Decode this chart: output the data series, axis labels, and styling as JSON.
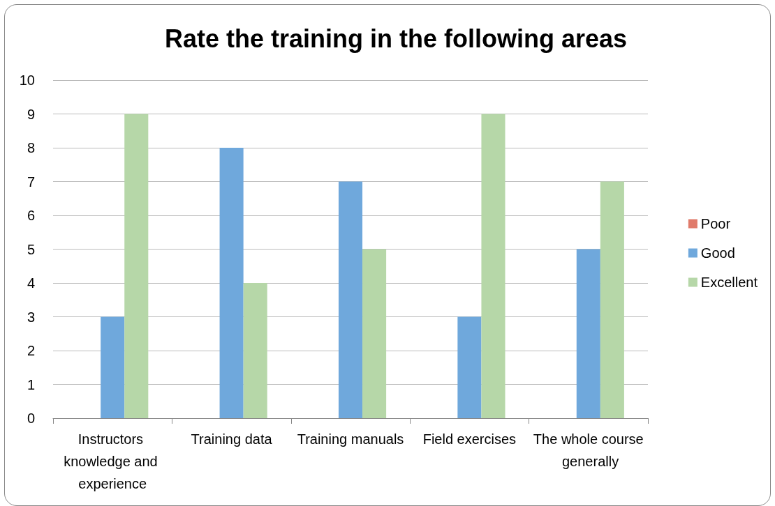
{
  "chart_data": {
    "type": "bar",
    "title": "Rate the training in the following areas",
    "categories": [
      "Instructors knowledge and experience",
      "Training data",
      "Training manuals",
      "Field exercises",
      "The whole course generally"
    ],
    "series": [
      {
        "name": "Poor",
        "color": "#e07b6b",
        "values": [
          0,
          0,
          0,
          0,
          0
        ]
      },
      {
        "name": "Good",
        "color": "#6fa8dc",
        "values": [
          3,
          8,
          7,
          3,
          5
        ]
      },
      {
        "name": "Excellent",
        "color": "#b6d7a8",
        "values": [
          9,
          4,
          5,
          9,
          7
        ]
      }
    ],
    "ylim": [
      0,
      10
    ],
    "yticks": [
      0,
      1,
      2,
      3,
      4,
      5,
      6,
      7,
      8,
      9,
      10
    ],
    "grid": "y",
    "legend": "right"
  }
}
